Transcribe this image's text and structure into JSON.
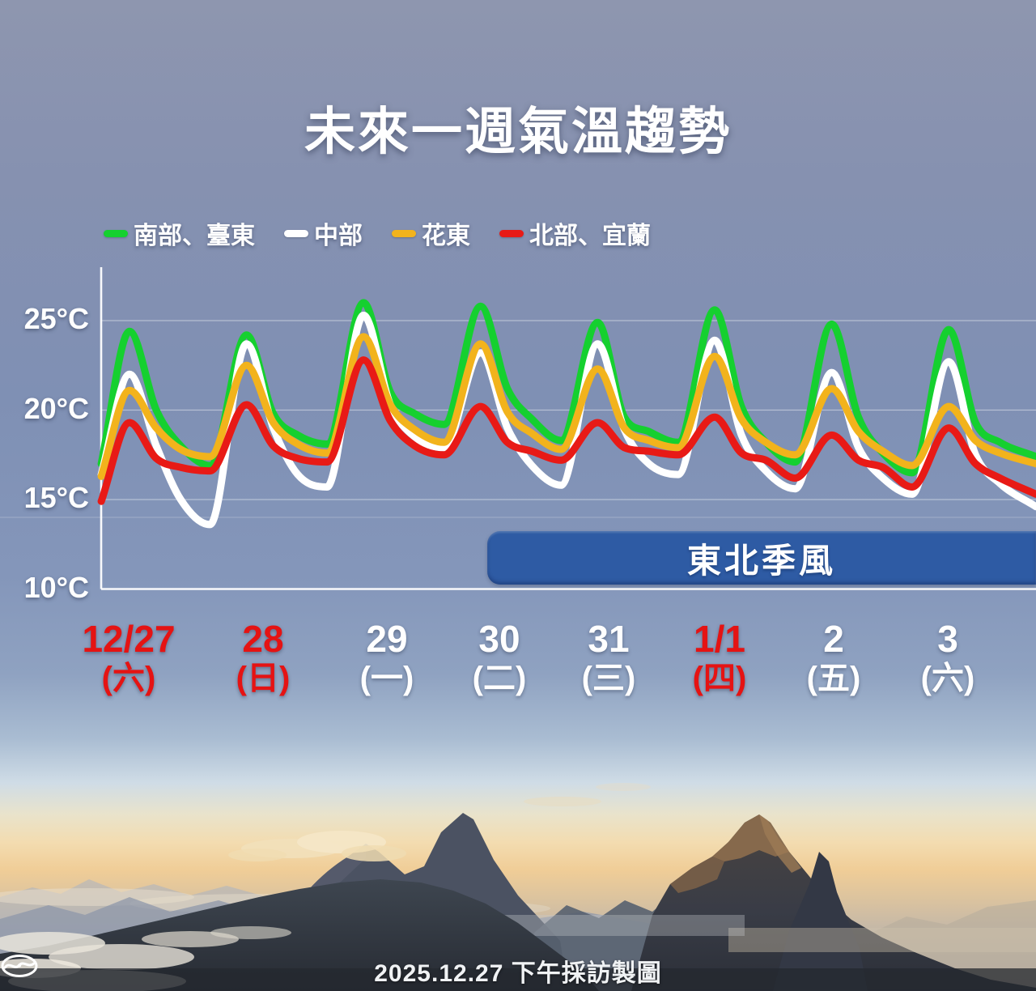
{
  "title": "未來一週氣溫趨勢",
  "legend": {
    "items": [
      {
        "label": "南部、臺東",
        "color": "#15d02f"
      },
      {
        "label": "中部",
        "color": "#ffffff"
      },
      {
        "label": "花東",
        "color": "#f2b31c"
      },
      {
        "label": "北部、宜蘭",
        "color": "#e81a16"
      }
    ]
  },
  "chart_data": {
    "type": "line",
    "title": "未來一週氣溫趨勢",
    "ylabel": "",
    "xlabel": "",
    "ylim": [
      10,
      27
    ],
    "grid": "horizontal",
    "legend_position": "top",
    "y_ticks": [
      {
        "label": "25°C",
        "value": 25
      },
      {
        "label": "20°C",
        "value": 20
      },
      {
        "label": "15°C",
        "value": 15
      },
      {
        "label": "10°C",
        "value": 10
      }
    ],
    "x_axis_days": [
      {
        "date": "12/27",
        "weekday": "(六)",
        "highlight": true
      },
      {
        "date": "28",
        "weekday": "(日)",
        "highlight": true
      },
      {
        "date": "29",
        "weekday": "(一)",
        "highlight": false
      },
      {
        "date": "30",
        "weekday": "(二)",
        "highlight": false
      },
      {
        "date": "31",
        "weekday": "(三)",
        "highlight": false
      },
      {
        "date": "1/1",
        "weekday": "(四)",
        "highlight": true
      },
      {
        "date": "2",
        "weekday": "(五)",
        "highlight": false
      },
      {
        "date": "3",
        "weekday": "(六)",
        "highlight": false
      }
    ],
    "highlight_color": "#e51313",
    "normal_label_color": "#ffffff",
    "points_unit": "[hours since 2025-12-27 00:00, temperature °C]",
    "series": [
      {
        "name": "南部、臺東",
        "color": "#15d02f",
        "points": [
          [
            8.2,
            17.0
          ],
          [
            14,
            24.4
          ],
          [
            19.5,
            20.0
          ],
          [
            24.5,
            18.0
          ],
          [
            30.5,
            16.9
          ],
          [
            38,
            24.2
          ],
          [
            43.5,
            19.8
          ],
          [
            48.5,
            18.6
          ],
          [
            54.5,
            18.1
          ],
          [
            62,
            26.0
          ],
          [
            67.5,
            21.0
          ],
          [
            72.5,
            19.8
          ],
          [
            78.5,
            19.2
          ],
          [
            86,
            25.8
          ],
          [
            91.5,
            21.2
          ],
          [
            96.5,
            19.5
          ],
          [
            102.5,
            18.3
          ],
          [
            110,
            24.9
          ],
          [
            115.5,
            19.6
          ],
          [
            120.5,
            18.8
          ],
          [
            126.5,
            18.2
          ],
          [
            134,
            25.6
          ],
          [
            139.5,
            20.2
          ],
          [
            144.5,
            18.2
          ],
          [
            150.5,
            17.1
          ],
          [
            158,
            24.8
          ],
          [
            163.5,
            19.6
          ],
          [
            168.5,
            17.6
          ],
          [
            174.5,
            16.5
          ],
          [
            182,
            24.5
          ],
          [
            187.5,
            19.3
          ],
          [
            192.5,
            18.2
          ],
          [
            199.9,
            17.4
          ]
        ]
      },
      {
        "name": "中部",
        "color": "#ffffff",
        "points": [
          [
            8.2,
            16.4
          ],
          [
            14,
            22.0
          ],
          [
            19.5,
            18.0
          ],
          [
            24.5,
            15.0
          ],
          [
            30.5,
            13.6
          ],
          [
            38,
            23.7
          ],
          [
            43.5,
            19.0
          ],
          [
            48.5,
            16.4
          ],
          [
            54.5,
            15.7
          ],
          [
            62,
            25.3
          ],
          [
            67.5,
            20.3
          ],
          [
            72.5,
            18.5
          ],
          [
            78.5,
            17.9
          ],
          [
            86,
            23.2
          ],
          [
            91.5,
            19.0
          ],
          [
            96.5,
            16.9
          ],
          [
            102.5,
            15.8
          ],
          [
            110,
            23.7
          ],
          [
            115.5,
            18.9
          ],
          [
            120.5,
            17.0
          ],
          [
            126.5,
            16.4
          ],
          [
            134,
            23.9
          ],
          [
            139.5,
            18.6
          ],
          [
            144.5,
            16.6
          ],
          [
            150.5,
            15.6
          ],
          [
            158,
            22.1
          ],
          [
            163.5,
            17.9
          ],
          [
            168.5,
            16.2
          ],
          [
            174.5,
            15.3
          ],
          [
            182,
            22.7
          ],
          [
            187.5,
            17.5
          ],
          [
            192.5,
            15.9
          ],
          [
            199.9,
            14.6
          ]
        ]
      },
      {
        "name": "花東",
        "color": "#f2b31c",
        "points": [
          [
            8.2,
            16.3
          ],
          [
            14,
            21.1
          ],
          [
            19.5,
            19.0
          ],
          [
            24.5,
            17.8
          ],
          [
            30.5,
            17.4
          ],
          [
            38,
            22.5
          ],
          [
            43.5,
            19.3
          ],
          [
            48.5,
            18.1
          ],
          [
            54.5,
            17.6
          ],
          [
            62,
            24.1
          ],
          [
            67.5,
            20.3
          ],
          [
            72.5,
            18.9
          ],
          [
            78.5,
            18.2
          ],
          [
            86,
            23.7
          ],
          [
            91.5,
            19.9
          ],
          [
            96.5,
            18.7
          ],
          [
            102.5,
            17.8
          ],
          [
            110,
            22.3
          ],
          [
            115.5,
            19.0
          ],
          [
            120.5,
            18.3
          ],
          [
            126.5,
            17.9
          ],
          [
            134,
            23.0
          ],
          [
            139.5,
            19.5
          ],
          [
            144.5,
            18.2
          ],
          [
            150.5,
            17.5
          ],
          [
            158,
            21.2
          ],
          [
            163.5,
            18.8
          ],
          [
            168.5,
            17.7
          ],
          [
            174.5,
            16.9
          ],
          [
            182,
            20.2
          ],
          [
            187.5,
            18.3
          ],
          [
            192.5,
            17.6
          ],
          [
            199.9,
            17.0
          ]
        ]
      },
      {
        "name": "北部、宜蘭",
        "color": "#e81a16",
        "points": [
          [
            8.2,
            14.9
          ],
          [
            14,
            19.3
          ],
          [
            19.5,
            17.3
          ],
          [
            24.5,
            16.8
          ],
          [
            30.5,
            16.6
          ],
          [
            38,
            20.3
          ],
          [
            43.5,
            18.0
          ],
          [
            48.5,
            17.3
          ],
          [
            54.5,
            17.1
          ],
          [
            62,
            22.8
          ],
          [
            67.5,
            19.4
          ],
          [
            72.5,
            18.0
          ],
          [
            78.5,
            17.5
          ],
          [
            86,
            20.2
          ],
          [
            91.5,
            18.2
          ],
          [
            96.5,
            17.7
          ],
          [
            102.5,
            17.2
          ],
          [
            110,
            19.3
          ],
          [
            115.5,
            17.9
          ],
          [
            120.5,
            17.7
          ],
          [
            126.5,
            17.5
          ],
          [
            134,
            19.6
          ],
          [
            139.5,
            17.6
          ],
          [
            144.5,
            17.2
          ],
          [
            150.5,
            16.2
          ],
          [
            158,
            18.6
          ],
          [
            163.5,
            17.2
          ],
          [
            168.5,
            16.8
          ],
          [
            174.5,
            15.7
          ],
          [
            182,
            19.0
          ],
          [
            187.5,
            17.0
          ],
          [
            192.5,
            16.2
          ],
          [
            199.9,
            15.3
          ]
        ]
      }
    ],
    "annotation": {
      "label": "東北季風",
      "color": "#2e5ba4"
    }
  },
  "footer": {
    "credit": "2025.12.27 下午採訪製圖",
    "logo": "cwa-swirl-logo"
  }
}
